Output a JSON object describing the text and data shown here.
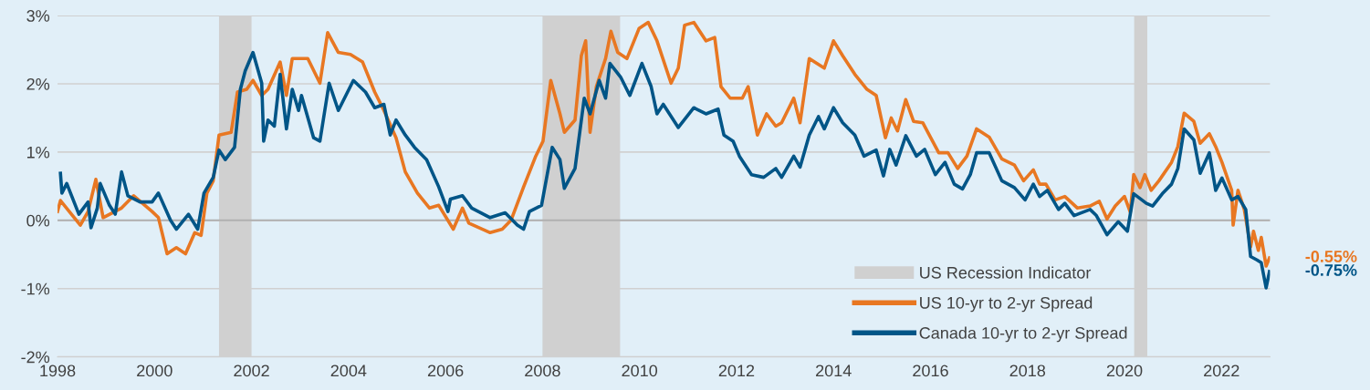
{
  "chart_data": {
    "type": "line",
    "xlim": [
      1998,
      2023
    ],
    "xticks": [
      1998,
      2000,
      2002,
      2004,
      2006,
      2008,
      2010,
      2012,
      2014,
      2016,
      2018,
      2020,
      2022
    ],
    "ylim": [
      -2,
      3
    ],
    "yticks": [
      {
        "value": -2,
        "label": "-2%"
      },
      {
        "value": -1,
        "label": "-1%"
      },
      {
        "value": 0,
        "label": "0%"
      },
      {
        "value": 1,
        "label": "1%"
      },
      {
        "value": 2,
        "label": "2%"
      },
      {
        "value": 3,
        "label": "3%"
      }
    ],
    "grid": "y",
    "legend": "bottom",
    "marker": "none",
    "line_style": "solid",
    "bands": [
      {
        "axis": "x",
        "from": 2001.33,
        "to": 2002.0,
        "color": "#d0d0d0"
      },
      {
        "axis": "x",
        "from": 2008.0,
        "to": 2009.6,
        "color": "#d0d0d0"
      },
      {
        "axis": "x",
        "from": 2020.2,
        "to": 2020.47,
        "color": "#d0d0d0"
      }
    ],
    "ref_lines": [
      {
        "axis": "y",
        "value": 0,
        "color": "#b0b0b0"
      }
    ],
    "series": [
      {
        "name": "US 10-yr to 2-yr Spread",
        "color": "#e87722",
        "x": [
          1998.0,
          1998.06,
          1998.31,
          1998.47,
          1998.63,
          1998.79,
          1998.94,
          1999.32,
          1999.57,
          1999.95,
          2000.08,
          2000.26,
          2000.45,
          2000.64,
          2000.83,
          2000.96,
          2001.08,
          2001.21,
          2001.33,
          2001.58,
          2001.71,
          2001.9,
          2002.03,
          2002.21,
          2002.34,
          2002.59,
          2002.72,
          2002.84,
          2003.16,
          2003.41,
          2003.57,
          2003.79,
          2004.04,
          2004.29,
          2004.54,
          2004.73,
          2004.98,
          2005.17,
          2005.42,
          2005.67,
          2005.86,
          2006.16,
          2006.35,
          2006.48,
          2006.92,
          2007.17,
          2007.35,
          2007.61,
          2007.86,
          2008.01,
          2008.17,
          2008.36,
          2008.45,
          2008.67,
          2008.8,
          2008.89,
          2008.98,
          2009.11,
          2009.3,
          2009.41,
          2009.55,
          2009.74,
          2009.99,
          2010.18,
          2010.36,
          2010.65,
          2010.8,
          2010.93,
          2011.12,
          2011.37,
          2011.55,
          2011.68,
          2011.87,
          2012.12,
          2012.24,
          2012.43,
          2012.62,
          2012.81,
          2012.93,
          2013.18,
          2013.31,
          2013.5,
          2013.81,
          2014.0,
          2014.19,
          2014.44,
          2014.69,
          2014.88,
          2015.07,
          2015.19,
          2015.32,
          2015.49,
          2015.65,
          2015.84,
          2016.17,
          2016.36,
          2016.56,
          2016.75,
          2016.95,
          2017.21,
          2017.47,
          2017.73,
          2017.92,
          2018.12,
          2018.25,
          2018.38,
          2018.57,
          2018.77,
          2019.03,
          2019.29,
          2019.48,
          2019.64,
          2019.81,
          2020.0,
          2020.12,
          2020.19,
          2020.32,
          2020.42,
          2020.55,
          2020.71,
          2020.97,
          2021.1,
          2021.23,
          2021.43,
          2021.56,
          2021.75,
          2021.88,
          2022.01,
          2022.21,
          2022.24,
          2022.34,
          2022.47,
          2022.6,
          2022.66,
          2022.76,
          2022.82,
          2022.92,
          2022.99
        ],
        "values": [
          0.13,
          0.29,
          0.07,
          -0.07,
          0.13,
          0.6,
          0.04,
          0.18,
          0.36,
          0.13,
          0.04,
          -0.49,
          -0.4,
          -0.49,
          -0.18,
          -0.22,
          0.4,
          0.58,
          1.25,
          1.29,
          1.88,
          1.92,
          2.05,
          1.83,
          1.92,
          2.32,
          1.83,
          2.37,
          2.37,
          2.01,
          2.75,
          2.46,
          2.43,
          2.32,
          1.88,
          1.61,
          1.21,
          0.71,
          0.4,
          0.18,
          0.22,
          -0.13,
          0.18,
          -0.04,
          -0.18,
          -0.13,
          0.0,
          0.49,
          0.94,
          1.16,
          2.05,
          1.56,
          1.29,
          1.47,
          2.41,
          2.63,
          1.29,
          1.96,
          2.37,
          2.77,
          2.46,
          2.37,
          2.81,
          2.9,
          2.63,
          2.01,
          2.23,
          2.86,
          2.9,
          2.63,
          2.68,
          1.96,
          1.79,
          1.79,
          1.96,
          1.25,
          1.56,
          1.38,
          1.43,
          1.79,
          1.43,
          2.37,
          2.23,
          2.63,
          2.41,
          2.14,
          1.92,
          1.83,
          1.21,
          1.5,
          1.31,
          1.77,
          1.45,
          1.43,
          0.99,
          0.99,
          0.76,
          0.94,
          1.34,
          1.22,
          0.9,
          0.81,
          0.58,
          0.74,
          0.53,
          0.53,
          0.3,
          0.35,
          0.18,
          0.21,
          0.28,
          0.02,
          0.21,
          0.35,
          0.12,
          0.67,
          0.48,
          0.67,
          0.44,
          0.58,
          0.85,
          1.08,
          1.57,
          1.45,
          1.13,
          1.27,
          1.08,
          0.85,
          0.44,
          -0.07,
          0.44,
          0.16,
          -0.39,
          -0.16,
          -0.44,
          -0.25,
          -0.67,
          -0.55
        ]
      },
      {
        "name": "Canada 10-yr to 2-yr Spread",
        "color": "#005587",
        "x": [
          1998.06,
          1998.09,
          1998.19,
          1998.44,
          1998.63,
          1998.69,
          1998.82,
          1998.88,
          1999.07,
          1999.19,
          1999.32,
          1999.45,
          1999.7,
          1999.95,
          2000.08,
          2000.33,
          2000.45,
          2000.7,
          2000.89,
          2001.02,
          2001.21,
          2001.33,
          2001.46,
          2001.65,
          2001.77,
          2001.87,
          2002.03,
          2002.21,
          2002.25,
          2002.34,
          2002.47,
          2002.59,
          2002.72,
          2002.84,
          2002.97,
          2003.03,
          2003.28,
          2003.41,
          2003.6,
          2003.79,
          2004.1,
          2004.35,
          2004.54,
          2004.73,
          2004.86,
          2004.98,
          2005.17,
          2005.36,
          2005.61,
          2005.86,
          2006.05,
          2006.1,
          2006.35,
          2006.54,
          2006.92,
          2007.23,
          2007.48,
          2007.61,
          2007.73,
          2007.98,
          2008.2,
          2008.36,
          2008.45,
          2008.67,
          2008.86,
          2008.98,
          2009.17,
          2009.3,
          2009.39,
          2009.61,
          2009.8,
          2010.05,
          2010.24,
          2010.36,
          2010.49,
          2010.8,
          2011.12,
          2011.37,
          2011.62,
          2011.74,
          2011.93,
          2012.06,
          2012.31,
          2012.56,
          2012.81,
          2012.93,
          2013.18,
          2013.31,
          2013.5,
          2013.69,
          2013.81,
          2014.0,
          2014.19,
          2014.44,
          2014.63,
          2014.88,
          2015.03,
          2015.16,
          2015.29,
          2015.49,
          2015.71,
          2015.88,
          2016.1,
          2016.3,
          2016.49,
          2016.66,
          2016.82,
          2016.95,
          2017.21,
          2017.47,
          2017.73,
          2017.95,
          2018.12,
          2018.25,
          2018.41,
          2018.64,
          2018.77,
          2018.96,
          2019.29,
          2019.42,
          2019.64,
          2019.87,
          2020.06,
          2020.19,
          2020.45,
          2020.58,
          2020.78,
          2020.97,
          2021.1,
          2021.23,
          2021.43,
          2021.56,
          2021.75,
          2021.88,
          2022.01,
          2022.21,
          2022.34,
          2022.5,
          2022.6,
          2022.73,
          2022.82,
          2022.92,
          2022.99
        ],
        "values": [
          0.69,
          0.4,
          0.54,
          0.09,
          0.27,
          -0.11,
          0.18,
          0.54,
          0.22,
          0.09,
          0.71,
          0.36,
          0.27,
          0.27,
          0.4,
          0.0,
          -0.13,
          0.09,
          -0.13,
          0.4,
          0.63,
          1.03,
          0.89,
          1.07,
          1.92,
          2.19,
          2.46,
          2.01,
          1.16,
          1.47,
          1.38,
          2.14,
          1.34,
          1.92,
          1.61,
          1.83,
          1.21,
          1.16,
          2.01,
          1.61,
          2.05,
          1.88,
          1.65,
          1.7,
          1.25,
          1.47,
          1.25,
          1.07,
          0.89,
          0.49,
          0.13,
          0.31,
          0.36,
          0.18,
          0.04,
          0.11,
          -0.07,
          -0.13,
          0.13,
          0.22,
          1.07,
          0.89,
          0.47,
          0.76,
          1.79,
          1.56,
          2.05,
          1.79,
          2.3,
          2.1,
          1.83,
          2.3,
          1.96,
          1.56,
          1.7,
          1.36,
          1.65,
          1.56,
          1.63,
          1.25,
          1.16,
          0.94,
          0.67,
          0.63,
          0.76,
          0.63,
          0.94,
          0.78,
          1.25,
          1.52,
          1.34,
          1.65,
          1.43,
          1.25,
          0.94,
          1.03,
          0.65,
          1.04,
          0.81,
          1.24,
          0.94,
          1.04,
          0.67,
          0.85,
          0.53,
          0.46,
          0.67,
          0.99,
          0.99,
          0.58,
          0.48,
          0.3,
          0.53,
          0.35,
          0.44,
          0.16,
          0.25,
          0.07,
          0.16,
          0.07,
          -0.21,
          -0.02,
          -0.16,
          0.39,
          0.25,
          0.21,
          0.39,
          0.53,
          0.76,
          1.34,
          1.18,
          0.69,
          0.99,
          0.44,
          0.62,
          0.3,
          0.35,
          0.16,
          -0.53,
          -0.58,
          -0.62,
          -0.99,
          -0.75
        ]
      }
    ],
    "annotations": [
      "US Recession Indicator",
      {
        "text": "-0.55%",
        "x": 2022.99,
        "y": -0.55
      },
      {
        "text": "-0.75%",
        "x": 2022.99,
        "y": -0.75
      }
    ]
  }
}
